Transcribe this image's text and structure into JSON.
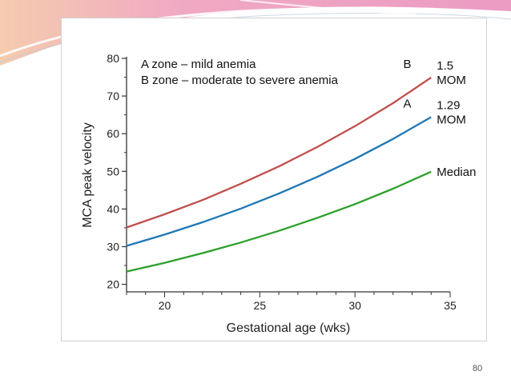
{
  "slide": {
    "page_number": "80"
  },
  "chart_data": {
    "type": "line",
    "xlabel": "Gestational age (wks)",
    "ylabel": "MCA peak velocity",
    "xlim": [
      18,
      35
    ],
    "ylim": [
      18,
      80
    ],
    "x_ticks": [
      "20",
      "25",
      "30",
      "35"
    ],
    "y_ticks": [
      "20",
      "30",
      "40",
      "50",
      "60",
      "70",
      "80"
    ],
    "grid": false,
    "annotations": [
      "A zone – mild anemia",
      "B zone – moderate to severe anemia"
    ],
    "x": [
      18,
      20,
      22,
      24,
      26,
      28,
      30,
      32,
      34
    ],
    "series": [
      {
        "name": "1.5 MOM",
        "zone_label": "B",
        "label_line1": "1.5",
        "label_line2": "MOM",
        "color": "#c0504d",
        "values": [
          35.1,
          38.6,
          42.4,
          46.7,
          51.3,
          56.4,
          62.0,
          68.1,
          74.9
        ]
      },
      {
        "name": "1.29 MOM",
        "zone_label": "A",
        "label_line1": "1.29",
        "label_line2": "MOM",
        "color": "#1f77b4",
        "values": [
          30.2,
          33.2,
          36.5,
          40.1,
          44.1,
          48.5,
          53.3,
          58.6,
          64.4
        ]
      },
      {
        "name": "Median",
        "label_line1": "Median",
        "color": "#2ca02c",
        "values": [
          23.4,
          25.7,
          28.3,
          31.1,
          34.2,
          37.6,
          41.3,
          45.4,
          49.9
        ]
      }
    ]
  }
}
